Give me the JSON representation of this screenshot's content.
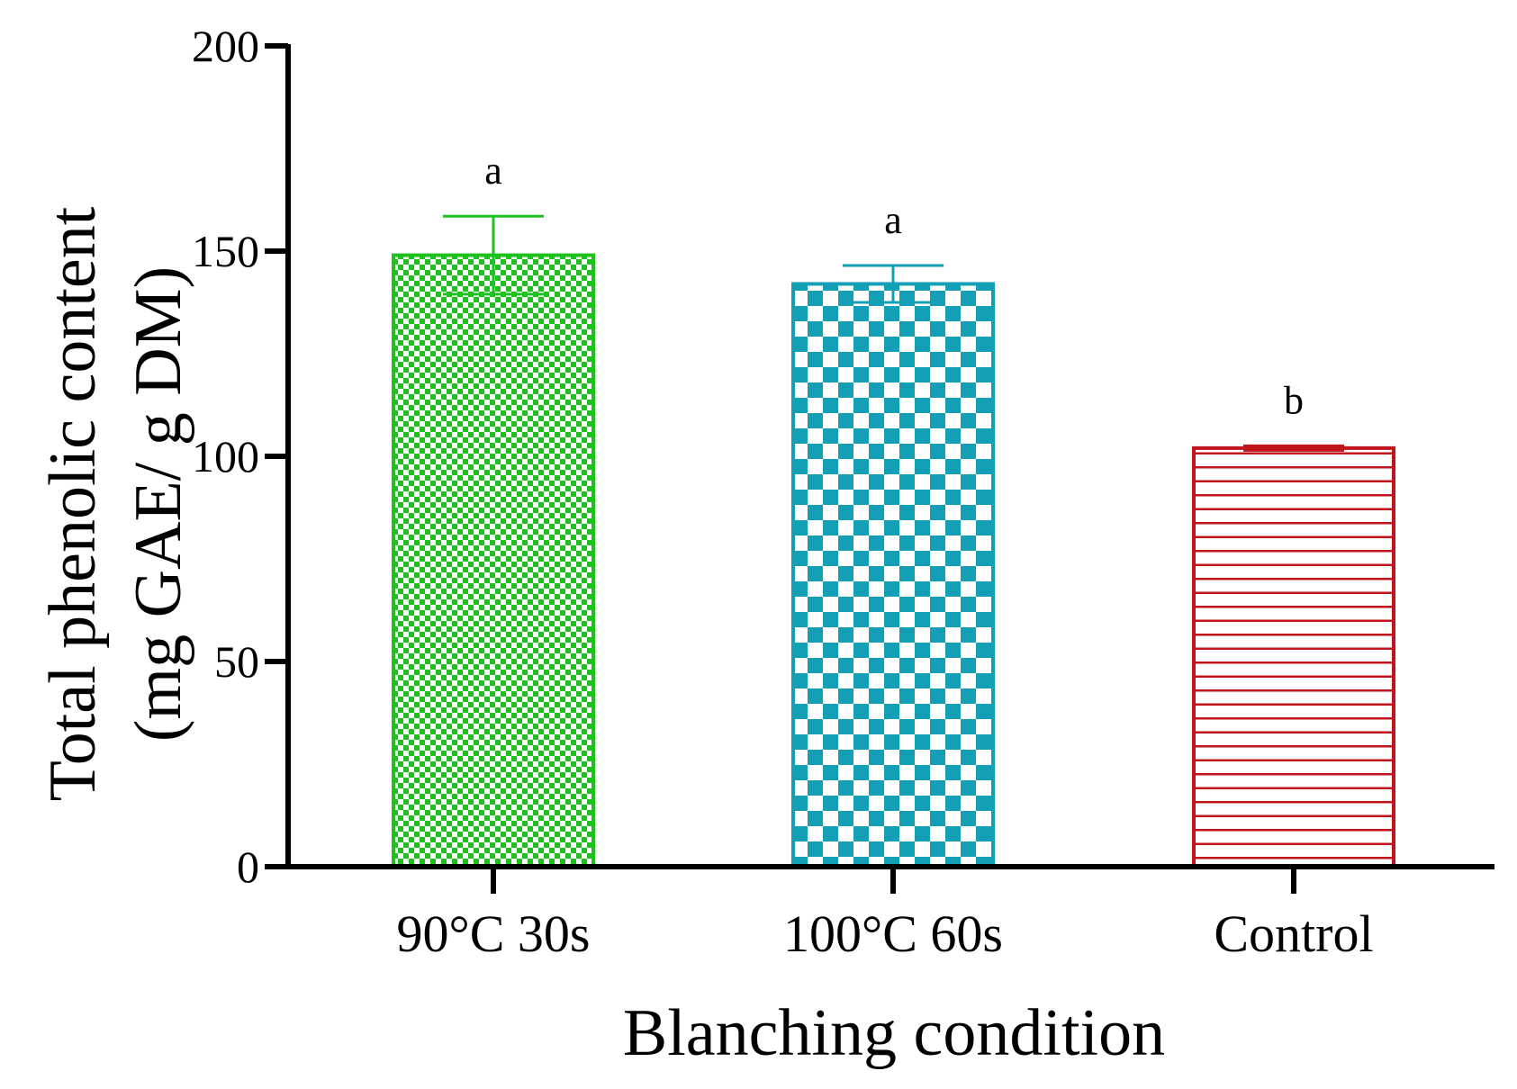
{
  "chart_data": {
    "type": "bar",
    "title": "",
    "xlabel": "Blanching condition",
    "ylabel_lines": [
      "Total phenolic content",
      "(mg GAE/ g DM)"
    ],
    "ylim": [
      0,
      200
    ],
    "yticks": [
      0,
      50,
      100,
      150,
      200
    ],
    "ytick_labels": [
      "0",
      "50",
      "100",
      "150",
      "200"
    ],
    "categories": [
      "90°C 30s",
      "100°C 60s",
      "Control"
    ],
    "values": [
      149,
      142,
      102
    ],
    "errors": [
      9.5,
      4.5,
      0.5
    ],
    "significance": [
      "a",
      "a",
      "b"
    ],
    "colors": [
      "#1fc11f",
      "#139fb5",
      "#c0151d"
    ],
    "patterns": [
      "fine-checker",
      "coarse-checker",
      "horizontal-lines"
    ],
    "grid": false,
    "legend": "none"
  }
}
